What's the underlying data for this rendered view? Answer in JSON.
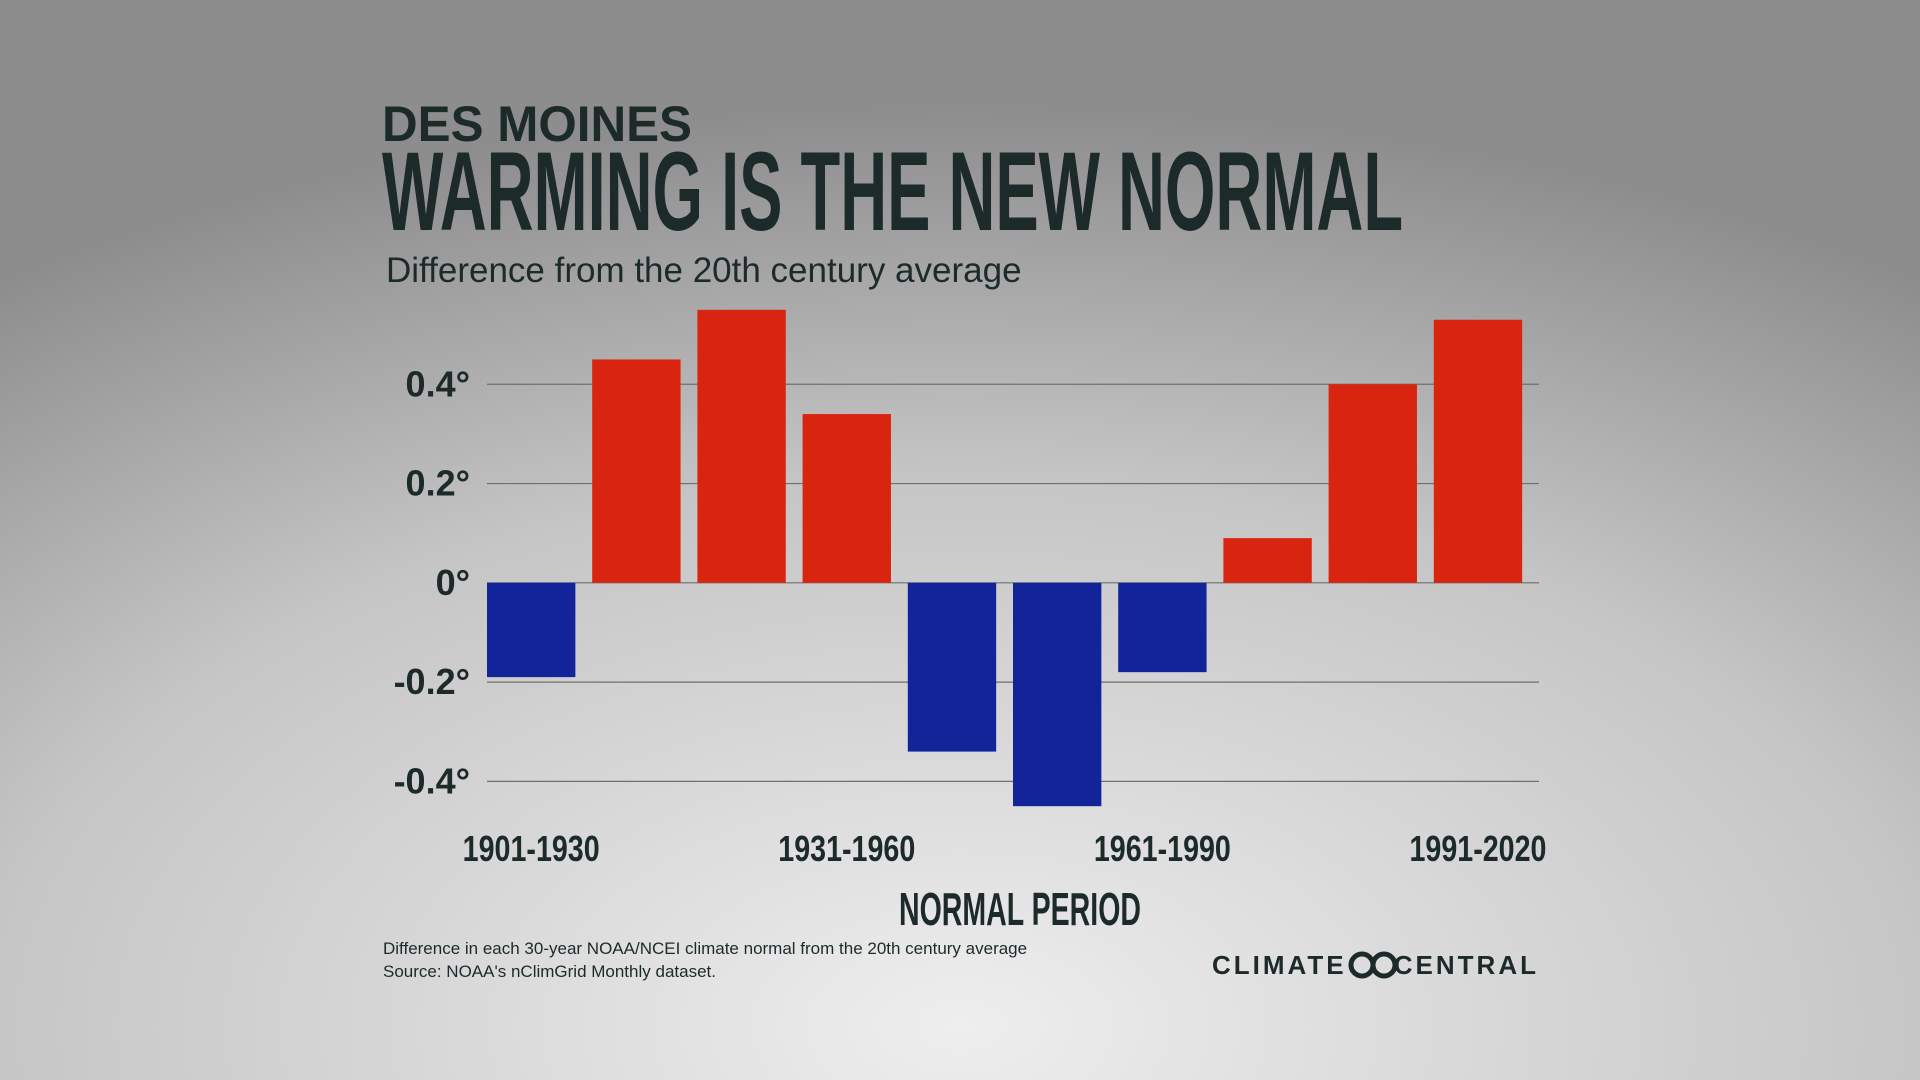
{
  "chart_data": {
    "type": "bar",
    "supertitle": "DES MOINES",
    "title": "WARMING IS THE NEW NORMAL",
    "subtitle": "Difference from the 20th century average",
    "x_label": "NORMAL PERIOD",
    "categories": [
      "1901-1930",
      null,
      null,
      "1931-1960",
      null,
      null,
      "1961-1990",
      null,
      null,
      "1991-2020"
    ],
    "values": [
      -0.19,
      0.45,
      0.55,
      0.34,
      -0.34,
      -0.45,
      -0.18,
      0.09,
      0.4,
      0.53
    ],
    "positive_color": "#d9250f",
    "negative_color": "#13239a",
    "ylim": [
      -0.5,
      0.6
    ],
    "yticks": [
      {
        "value": -0.4,
        "label": "-0.4°"
      },
      {
        "value": -0.2,
        "label": "-0.2°"
      },
      {
        "value": 0,
        "label": "0°"
      },
      {
        "value": 0.2,
        "label": "0.2°"
      },
      {
        "value": 0.4,
        "label": "0.4°"
      }
    ],
    "grid": true,
    "notes": [
      "Difference in each 30-year NOAA/NCEI climate normal from the 20th century average",
      "Source: NOAA's nClimGrid Monthly dataset."
    ],
    "logo_text": [
      "CLIMATE",
      "CENTRAL"
    ]
  }
}
